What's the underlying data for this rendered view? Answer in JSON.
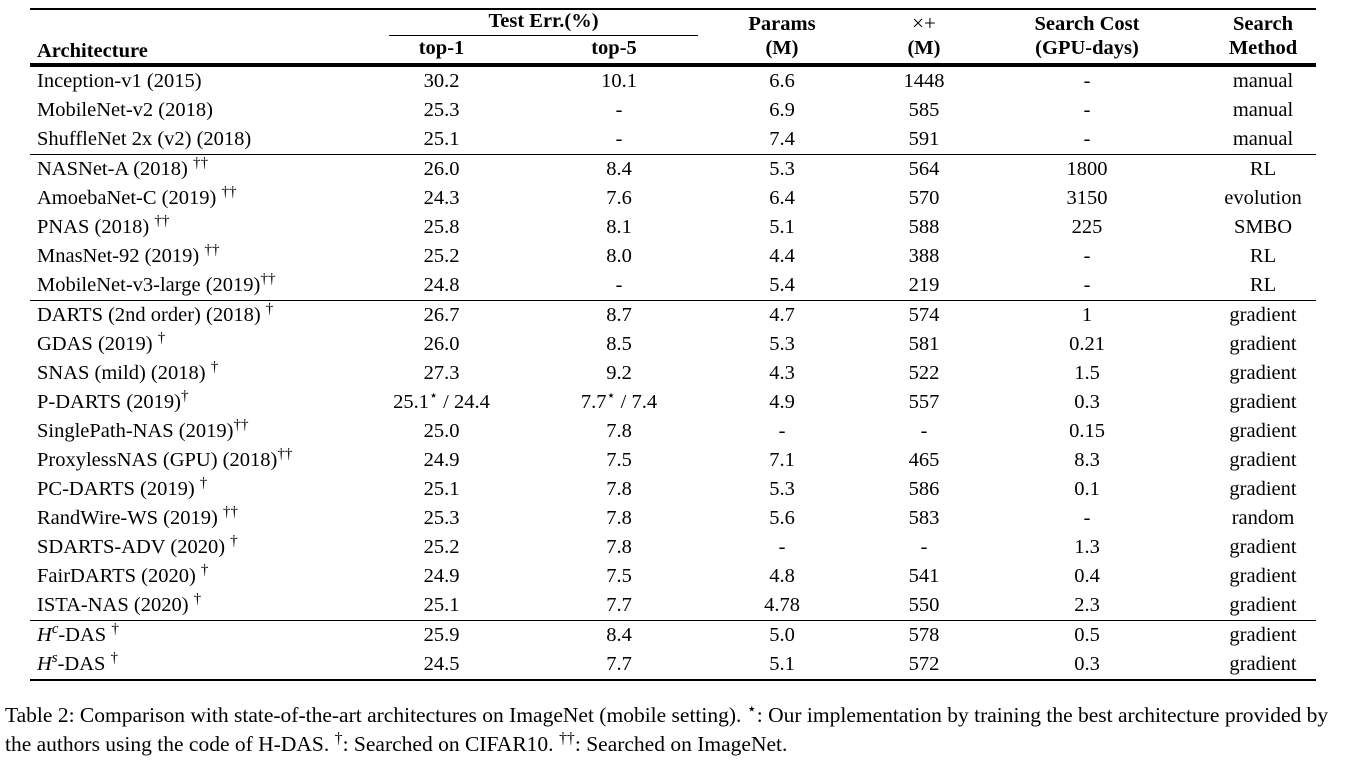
{
  "colors": {
    "text": "#000000",
    "background": "#ffffff",
    "rule": "#000000"
  },
  "table": {
    "headers": {
      "architecture": "Architecture",
      "test_err": "Test Err.(%)",
      "top1": "top-1",
      "top5": "top-5",
      "params_line1": "Params",
      "params_line2": "(M)",
      "mult_line1": "×+",
      "mult_line2": "(M)",
      "cost_line1": "Search Cost",
      "cost_line2": "(GPU-days)",
      "method_line1": "Search",
      "method_line2": "Method"
    },
    "groups": [
      {
        "rows": [
          {
            "arch": "Inception-v1 (2015)",
            "marker": "",
            "tight": false,
            "top1": "30.2",
            "top5": "10.1",
            "params": "6.6",
            "mult": "1448",
            "cost": "-",
            "method": "manual"
          },
          {
            "arch": "MobileNet-v2 (2018)",
            "marker": "",
            "tight": false,
            "top1": "25.3",
            "top5": "-",
            "params": "6.9",
            "mult": "585",
            "cost": "-",
            "method": "manual"
          },
          {
            "arch": "ShuffleNet 2x (v2) (2018)",
            "marker": "",
            "tight": false,
            "top1": "25.1",
            "top5": "-",
            "params": "7.4",
            "mult": "591",
            "cost": "-",
            "method": "manual"
          }
        ]
      },
      {
        "rows": [
          {
            "arch": "NASNet-A (2018)",
            "marker": "††",
            "tight": false,
            "top1": "26.0",
            "top5": "8.4",
            "params": "5.3",
            "mult": "564",
            "cost": "1800",
            "method": "RL"
          },
          {
            "arch": "AmoebaNet-C (2019)",
            "marker": "††",
            "tight": false,
            "top1": "24.3",
            "top5": "7.6",
            "params": "6.4",
            "mult": "570",
            "cost": "3150",
            "method": "evolution"
          },
          {
            "arch": "PNAS (2018)",
            "marker": "††",
            "tight": false,
            "top1": "25.8",
            "top5": "8.1",
            "params": "5.1",
            "mult": "588",
            "cost": "225",
            "method": "SMBO"
          },
          {
            "arch": "MnasNet-92 (2019)",
            "marker": "††",
            "tight": false,
            "top1": "25.2",
            "top5": "8.0",
            "params": "4.4",
            "mult": "388",
            "cost": "-",
            "method": "RL"
          },
          {
            "arch": "MobileNet-v3-large (2019)",
            "marker": "††",
            "tight": true,
            "top1": "24.8",
            "top5": "-",
            "params": "5.4",
            "mult": "219",
            "cost": "-",
            "method": "RL"
          }
        ]
      },
      {
        "rows": [
          {
            "arch": "DARTS (2nd order) (2018)",
            "marker": "†",
            "tight": false,
            "top1": "26.7",
            "top5": "8.7",
            "params": "4.7",
            "mult": "574",
            "cost": "1",
            "method": "gradient"
          },
          {
            "arch": "GDAS (2019)",
            "marker": "†",
            "tight": false,
            "top1": "26.0",
            "top5": "8.5",
            "params": "5.3",
            "mult": "581",
            "cost": "0.21",
            "method": "gradient"
          },
          {
            "arch": "SNAS (mild) (2018)",
            "marker": "†",
            "tight": false,
            "top1": "27.3",
            "top5": "9.2",
            "params": "4.3",
            "mult": "522",
            "cost": "1.5",
            "method": "gradient"
          },
          {
            "arch": "P-DARTS (2019)",
            "marker": "†",
            "tight": true,
            "top1": "25.1⋆ / 24.4",
            "top5": "7.7⋆ / 7.4",
            "params": "4.9",
            "mult": "557",
            "cost": "0.3",
            "method": "gradient"
          },
          {
            "arch": "SinglePath-NAS (2019)",
            "marker": "††",
            "tight": true,
            "top1": "25.0",
            "top5": "7.8",
            "params": "-",
            "mult": "-",
            "cost": "0.15",
            "method": "gradient"
          },
          {
            "arch": "ProxylessNAS (GPU) (2018)",
            "marker": "††",
            "tight": true,
            "top1": "24.9",
            "top5": "7.5",
            "params": "7.1",
            "mult": "465",
            "cost": "8.3",
            "method": "gradient"
          },
          {
            "arch": "PC-DARTS (2019)",
            "marker": "†",
            "tight": false,
            "top1": "25.1",
            "top5": "7.8",
            "params": "5.3",
            "mult": "586",
            "cost": "0.1",
            "method": "gradient"
          },
          {
            "arch": "RandWire-WS (2019)",
            "marker": "††",
            "tight": false,
            "top1": "25.3",
            "top5": "7.8",
            "params": "5.6",
            "mult": "583",
            "cost": "-",
            "method": "random"
          },
          {
            "arch": "SDARTS-ADV (2020)",
            "marker": "†",
            "tight": false,
            "top1": "25.2",
            "top5": "7.8",
            "params": "-",
            "mult": "-",
            "cost": "1.3",
            "method": "gradient"
          },
          {
            "arch": "FairDARTS (2020)",
            "marker": "†",
            "tight": false,
            "top1": "24.9",
            "top5": "7.5",
            "params": "4.8",
            "mult": "541",
            "cost": "0.4",
            "method": "gradient"
          },
          {
            "arch": "ISTA-NAS (2020)",
            "marker": "†",
            "tight": false,
            "top1": "25.1",
            "top5": "7.7",
            "params": "4.78",
            "mult": "550",
            "cost": "2.3",
            "method": "gradient"
          }
        ]
      },
      {
        "rows": [
          {
            "arch_math": {
              "base": "H",
              "sup": "c",
              "rest": "-DAS"
            },
            "marker": "†",
            "tight": false,
            "top1": "25.9",
            "top5": "8.4",
            "params": "5.0",
            "mult": "578",
            "cost": "0.5",
            "method": "gradient"
          },
          {
            "arch_math": {
              "base": "H",
              "sup": "s",
              "rest": "-DAS"
            },
            "marker": "†",
            "tight": false,
            "top1": "24.5",
            "top5": "7.7",
            "params": "5.1",
            "mult": "572",
            "cost": "0.3",
            "method": "gradient"
          }
        ]
      }
    ]
  },
  "caption": {
    "segments": [
      {
        "text": "Table 2: Comparison with state-of-the-art architectures on ImageNet (mobile setting).  "
      },
      {
        "sup": "⋆"
      },
      {
        "text": ": Our implementation by training the best architecture provided by the authors using the code of H-DAS.  "
      },
      {
        "sup": "†"
      },
      {
        "text": ": Searched on CIFAR10.  "
      },
      {
        "sup": "††"
      },
      {
        "text": ": Searched on ImageNet."
      }
    ]
  }
}
